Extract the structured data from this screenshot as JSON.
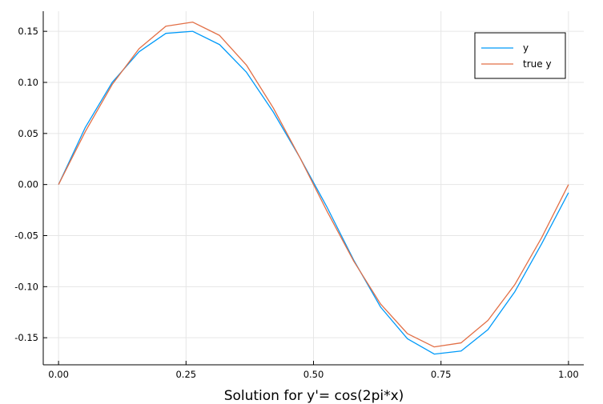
{
  "chart_data": {
    "type": "line",
    "title": "",
    "xlabel": "Solution for y'= cos(2pi*x)",
    "ylabel": "",
    "xlim": [
      -0.03,
      1.03
    ],
    "ylim": [
      -0.1765,
      0.1697
    ],
    "grid": true,
    "legend_position": "top-right",
    "x_ticks": [
      {
        "value": 0.0,
        "label": "0.00"
      },
      {
        "value": 0.25,
        "label": "0.25"
      },
      {
        "value": 0.5,
        "label": "0.50"
      },
      {
        "value": 0.75,
        "label": "0.75"
      },
      {
        "value": 1.0,
        "label": "1.00"
      }
    ],
    "y_ticks": [
      {
        "value": 0.15,
        "label": "0.15"
      },
      {
        "value": 0.1,
        "label": "0.10"
      },
      {
        "value": 0.05,
        "label": "0.05"
      },
      {
        "value": 0.0,
        "label": "0.00"
      },
      {
        "value": -0.05,
        "label": "-0.05"
      },
      {
        "value": -0.1,
        "label": "-0.10"
      },
      {
        "value": -0.15,
        "label": "-0.15"
      }
    ],
    "x": [
      0.0,
      0.0526,
      0.1053,
      0.1579,
      0.2105,
      0.2632,
      0.3158,
      0.3684,
      0.4211,
      0.4737,
      0.5263,
      0.5789,
      0.6316,
      0.6842,
      0.7368,
      0.7895,
      0.8421,
      0.8947,
      0.9474,
      1.0
    ],
    "series": [
      {
        "name": "y",
        "color": "#009af9",
        "values": [
          0.0,
          0.056,
          0.1,
          0.13,
          0.148,
          0.15,
          0.137,
          0.11,
          0.071,
          0.026,
          -0.022,
          -0.074,
          -0.12,
          -0.151,
          -0.166,
          -0.163,
          -0.142,
          -0.105,
          -0.058,
          -0.008
        ]
      },
      {
        "name": "true y",
        "color": "#e26f46",
        "values": [
          0.0,
          0.052,
          0.098,
          0.133,
          0.155,
          0.159,
          0.146,
          0.117,
          0.075,
          0.026,
          -0.026,
          -0.075,
          -0.117,
          -0.146,
          -0.159,
          -0.155,
          -0.133,
          -0.098,
          -0.052,
          0.0
        ]
      }
    ]
  }
}
